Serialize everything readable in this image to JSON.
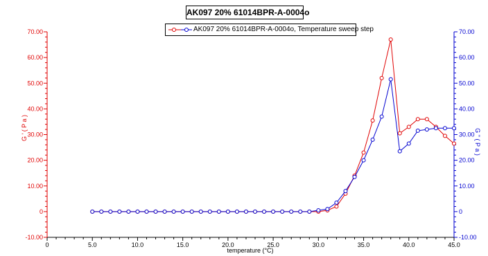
{
  "chart_data": {
    "type": "line",
    "title": "AK097 20% 61014BPR-A-0004o",
    "legend": "AK097 20% 61014BPR-A-0004o, Temperature sweep step",
    "xlabel": "temperature (°C)",
    "ylabel_left": "G ' ( P a )",
    "ylabel_right": "G '' ( P a )",
    "xlim": [
      0,
      45
    ],
    "ylim": [
      -10,
      70
    ],
    "x_ticks": [
      "0",
      "5.0",
      "10.0",
      "15.0",
      "20.0",
      "25.0",
      "30.0",
      "35.0",
      "40.0",
      "45.0"
    ],
    "y_ticks_left": [
      "-10.00",
      "0",
      "10.00",
      "20.00",
      "30.00",
      "40.00",
      "50.00",
      "60.00",
      "70.00"
    ],
    "y_ticks_right": [
      "-10.00",
      "0",
      "10.00",
      "20.00",
      "30.00",
      "40.00",
      "50.00",
      "60.00",
      "70.00"
    ],
    "series": [
      {
        "name": "G'",
        "color": "#e00000",
        "axis": "left",
        "x": [
          5,
          6,
          7,
          8,
          9,
          10,
          11,
          12,
          13,
          14,
          15,
          16,
          17,
          18,
          19,
          20,
          21,
          22,
          23,
          24,
          25,
          26,
          27,
          28,
          29,
          30,
          31,
          32,
          33,
          34,
          35,
          36,
          37,
          38,
          39,
          40,
          41,
          42,
          43,
          44,
          45
        ],
        "y": [
          0,
          0,
          0,
          0,
          0,
          0,
          0,
          0,
          0,
          0,
          0,
          0,
          0,
          0,
          0,
          0,
          0,
          0,
          0,
          0,
          0,
          0,
          0,
          0,
          0,
          0,
          0.5,
          2,
          7,
          14,
          23,
          35.5,
          52,
          67,
          30.5,
          33,
          36,
          36,
          33,
          29.5,
          26.5
        ]
      },
      {
        "name": "G''",
        "color": "#0000d0",
        "axis": "right",
        "x": [
          5,
          6,
          7,
          8,
          9,
          10,
          11,
          12,
          13,
          14,
          15,
          16,
          17,
          18,
          19,
          20,
          21,
          22,
          23,
          24,
          25,
          26,
          27,
          28,
          29,
          30,
          31,
          32,
          33,
          34,
          35,
          36,
          37,
          38,
          39,
          40,
          41,
          42,
          43,
          44,
          45
        ],
        "y": [
          0,
          0,
          0,
          0,
          0,
          0,
          0,
          0,
          0,
          0,
          0,
          0,
          0,
          0,
          0,
          0,
          0,
          0,
          0,
          0,
          0,
          0,
          0,
          0,
          0,
          0.5,
          1,
          3.5,
          8,
          13.5,
          20,
          28,
          37,
          51.5,
          23.5,
          26.5,
          31.5,
          32,
          32.5,
          32.5,
          32.5
        ]
      }
    ],
    "grid": false,
    "legend_position": "top-center"
  }
}
